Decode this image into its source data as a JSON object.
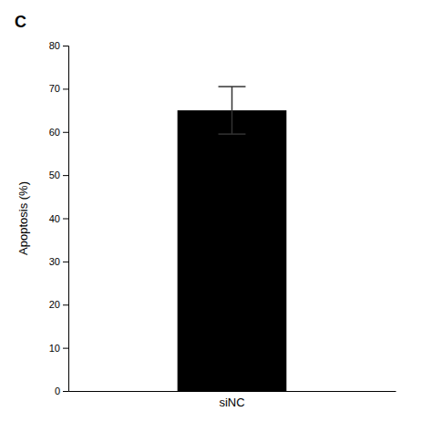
{
  "chart_data": {
    "type": "bar",
    "categories": [
      "siNC"
    ],
    "values": [
      65.0
    ],
    "error": [
      5.5
    ],
    "color": "#000000",
    "ylabel": "Apoptosis (%)",
    "ylim": [
      0,
      80
    ],
    "yticks": [
      0,
      10,
      20,
      30,
      40,
      50,
      60,
      70,
      80
    ],
    "grid": false,
    "annotations": [
      "C"
    ]
  }
}
